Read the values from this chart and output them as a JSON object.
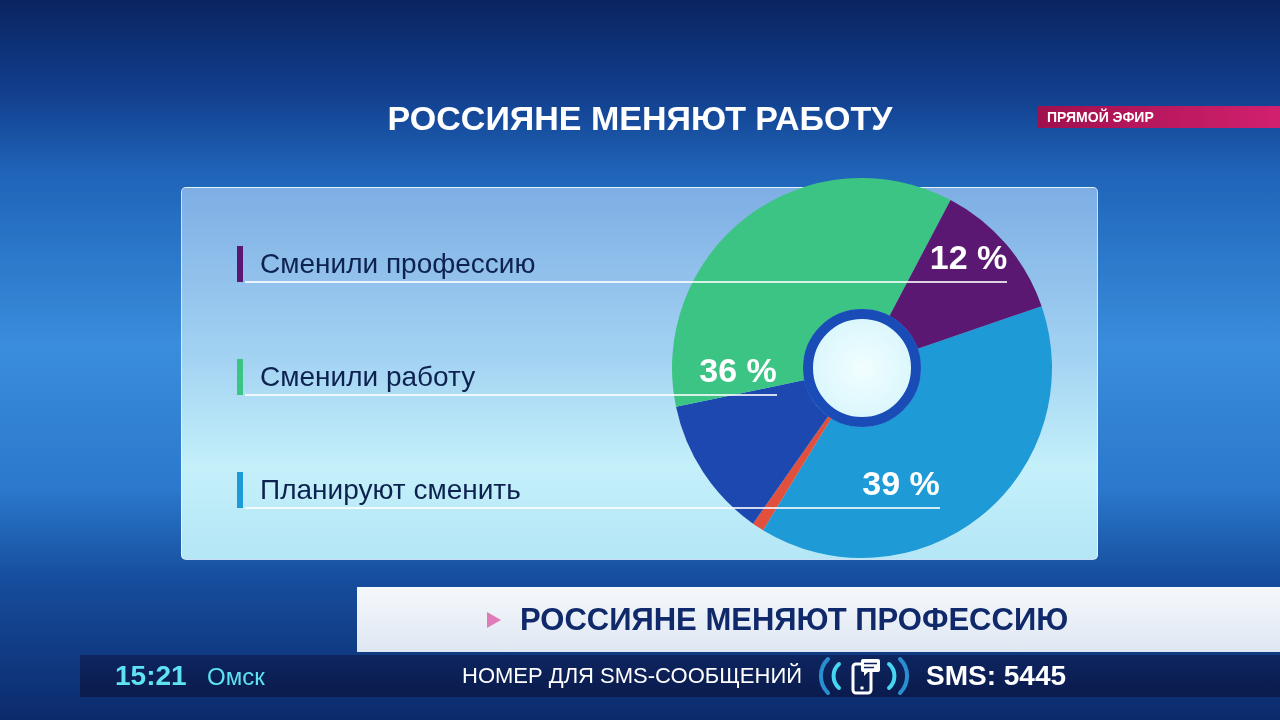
{
  "chart_data": {
    "type": "donut",
    "title": "РОССИЯНЕ МЕНЯЮТ РАБОТУ",
    "categories": [
      "Планируют сменить",
      null,
      null,
      "Сменили работу",
      "Сменили профессию"
    ],
    "values": [
      39,
      1,
      12,
      36,
      12
    ],
    "colors": [
      "#1e9ad6",
      "#e0503c",
      "#1c48b0",
      "#3cc484",
      "#5a1872"
    ],
    "value_labels": [
      "39 %",
      null,
      null,
      "36 %",
      "12 %"
    ],
    "legend": "left",
    "annotations": [
      "ПРЯМОЙ ЭФИР",
      "РОССИЯНЕ МЕНЯЮТ ПРОФЕССИЮ",
      "15:21",
      "Омск",
      "НОМЕР ДЛЯ SMS-СООБЩЕНИЙ",
      "SMS: 5445"
    ]
  }
}
